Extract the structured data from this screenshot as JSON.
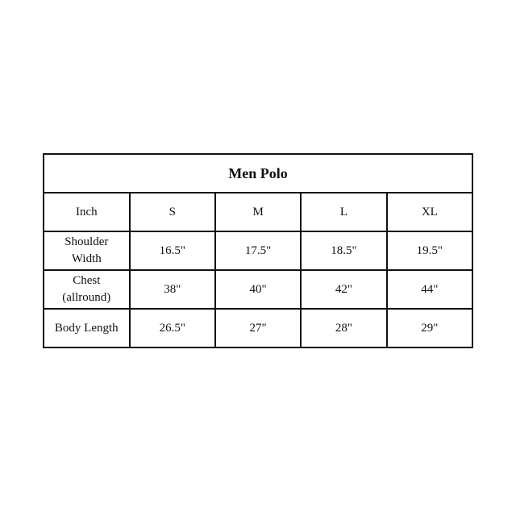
{
  "table": {
    "title": "Men Polo",
    "headers": [
      "Inch",
      "S",
      "M",
      "L",
      "XL"
    ],
    "rows": [
      {
        "label": [
          "Shoulder",
          "Width"
        ],
        "values": [
          "16.5\"",
          "17.5\"",
          "18.5\"",
          "19.5\""
        ]
      },
      {
        "label": [
          "Chest",
          "(allround)"
        ],
        "values": [
          "38\"",
          "40\"",
          "42\"",
          "44\""
        ]
      },
      {
        "label": [
          "Body Length"
        ],
        "values": [
          "26.5\"",
          "27\"",
          "28\"",
          "29\""
        ]
      }
    ]
  }
}
